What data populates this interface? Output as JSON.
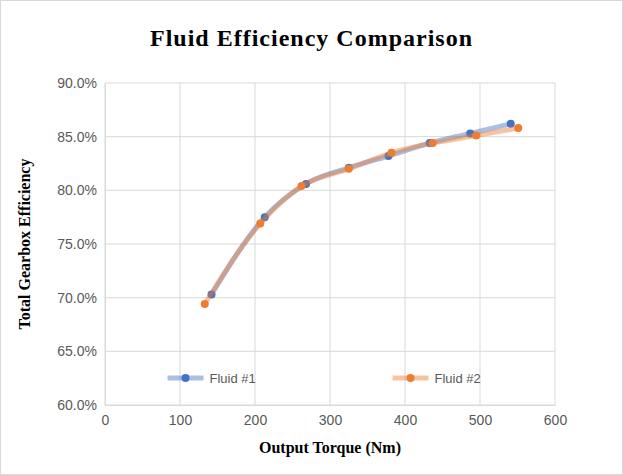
{
  "chart_data": {
    "type": "line",
    "title": "Fluid Efficiency Comparison",
    "x_label": "Output Torque (Nm)",
    "y_label": "Total Gearbox Efficiency",
    "xlim": [
      0,
      600
    ],
    "xticks": [
      0,
      100,
      200,
      300,
      400,
      500,
      600
    ],
    "ylim": [
      60,
      90
    ],
    "yticks": [
      {
        "value": 60,
        "label": "60.0%"
      },
      {
        "value": 65,
        "label": "65.0%"
      },
      {
        "value": 70,
        "label": "70.0%"
      },
      {
        "value": 75,
        "label": "75.0%"
      },
      {
        "value": 80,
        "label": "80.0%"
      },
      {
        "value": 85,
        "label": "85.0%"
      },
      {
        "value": 90,
        "label": "90.0%"
      }
    ],
    "grid": true,
    "legend": "bottom",
    "marker": "circle",
    "line_style": "smooth",
    "series": [
      {
        "name": "Fluid #1",
        "color": "#4472c4",
        "x": [
          142,
          213,
          268,
          325,
          378,
          433,
          487,
          541
        ],
        "values": [
          70.3,
          77.5,
          80.6,
          82.1,
          83.2,
          84.4,
          85.3,
          86.2
        ]
      },
      {
        "name": "Fluid #2",
        "color": "#ed7d31",
        "x": [
          133,
          207,
          262,
          325,
          382,
          437,
          495,
          551
        ],
        "values": [
          69.4,
          76.9,
          80.4,
          82.0,
          83.5,
          84.4,
          85.1,
          85.8
        ]
      }
    ]
  }
}
